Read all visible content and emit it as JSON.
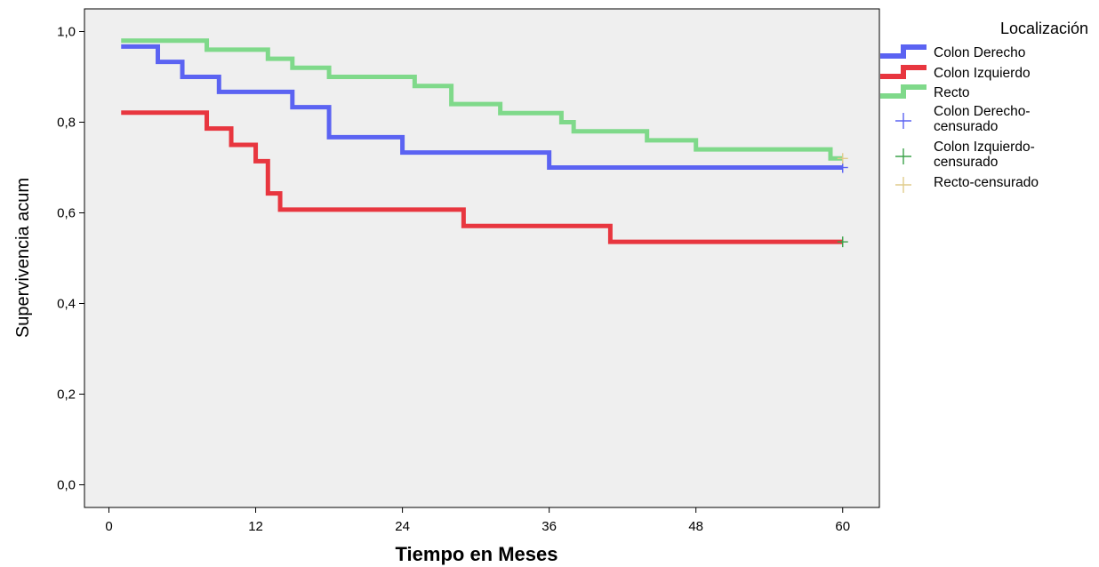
{
  "chart_data": {
    "type": "line",
    "step": true,
    "xlabel": "Tiempo en Meses",
    "ylabel": "Supervivencia acum",
    "xlim": [
      -2,
      63
    ],
    "ylim": [
      -0.05,
      1.05
    ],
    "xticks": [
      0,
      12,
      24,
      36,
      48,
      60
    ],
    "xtick_labels": [
      "0",
      "12",
      "24",
      "36",
      "48",
      "60"
    ],
    "yticks": [
      0.0,
      0.2,
      0.4,
      0.6,
      0.8,
      1.0
    ],
    "ytick_labels": [
      "0,0",
      "0,2",
      "0,4",
      "0,6",
      "0,8",
      "1,0"
    ],
    "plot_background": "#efefef",
    "grid": false,
    "legend": {
      "title": "Localización",
      "position": "right",
      "entries": [
        {
          "label": "Colon Derecho",
          "type": "line",
          "color": "#5b63f2"
        },
        {
          "label": "Colon Izquierdo",
          "type": "line",
          "color": "#e8363f"
        },
        {
          "label": "Recto",
          "type": "line",
          "color": "#7fd98a"
        },
        {
          "label_lines": [
            "Colon Derecho-",
            "censurado"
          ],
          "type": "marker",
          "color": "#5b63f2"
        },
        {
          "label_lines": [
            "Colon Izquierdo-",
            "censurado"
          ],
          "type": "marker",
          "color": "#3ca24a"
        },
        {
          "label_lines": [
            "Recto-censurado"
          ],
          "type": "marker",
          "color": "#e0cc8c"
        }
      ]
    },
    "series": [
      {
        "name": "Colon Derecho",
        "color": "#5b63f2",
        "x": [
          1,
          4,
          6,
          9,
          15,
          18,
          24,
          36,
          60
        ],
        "y": [
          0.967,
          0.933,
          0.9,
          0.867,
          0.833,
          0.767,
          0.733,
          0.7,
          0.7
        ],
        "censored": [
          {
            "x": 60,
            "y": 0.7
          }
        ]
      },
      {
        "name": "Colon Izquierdo",
        "color": "#e8363f",
        "x": [
          1,
          8,
          10,
          12,
          13,
          14,
          29,
          41,
          60
        ],
        "y": [
          0.821,
          0.786,
          0.75,
          0.714,
          0.643,
          0.607,
          0.571,
          0.536,
          0.536
        ],
        "censored": [
          {
            "x": 60,
            "y": 0.536
          }
        ]
      },
      {
        "name": "Recto",
        "color": "#7fd98a",
        "x": [
          1,
          8,
          13,
          15,
          18,
          25,
          28,
          32,
          37,
          38,
          44,
          48,
          59,
          60
        ],
        "y": [
          0.98,
          0.96,
          0.94,
          0.92,
          0.9,
          0.88,
          0.84,
          0.82,
          0.8,
          0.78,
          0.76,
          0.74,
          0.72,
          0.72
        ],
        "censored": [
          {
            "x": 60,
            "y": 0.72
          }
        ]
      }
    ]
  }
}
